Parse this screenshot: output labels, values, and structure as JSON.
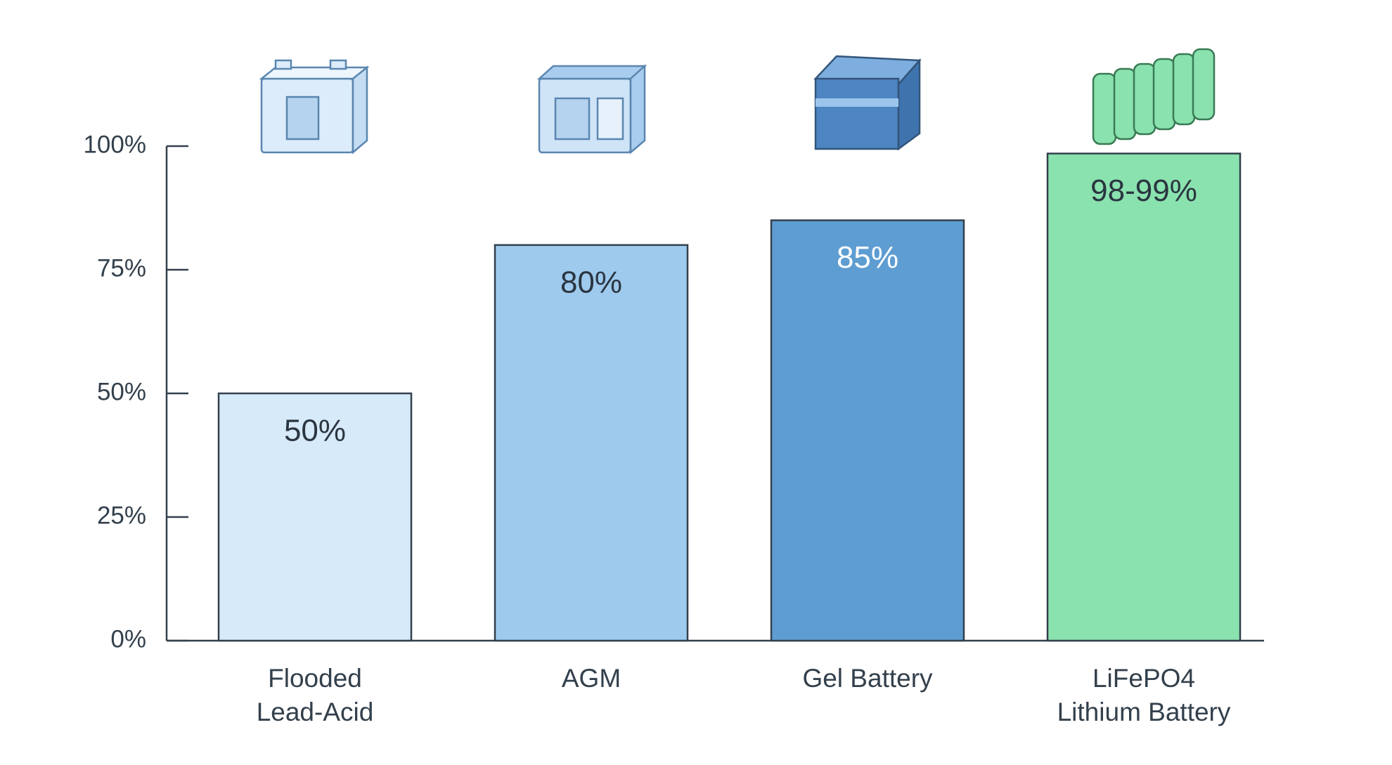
{
  "chart_data": {
    "type": "bar",
    "categories": [
      "Flooded\nLead-Acid",
      "AGM",
      "Gel Battery",
      "LiFePO4\nLithium Battery"
    ],
    "values": [
      50,
      80,
      85,
      98.5
    ],
    "value_labels": [
      "50%",
      "80%",
      "85%",
      "98-99%"
    ],
    "colors": [
      "#d6eaf9",
      "#9dcaed",
      "#5e9dd2",
      "#8ae2ae"
    ],
    "ylim": [
      0,
      100
    ],
    "yticks": [
      {
        "value": 0,
        "label": "0%"
      },
      {
        "value": 25,
        "label": "25%"
      },
      {
        "value": 50,
        "label": "50%"
      },
      {
        "value": 75,
        "label": "75%"
      },
      {
        "value": 100,
        "label": "100%"
      }
    ]
  }
}
